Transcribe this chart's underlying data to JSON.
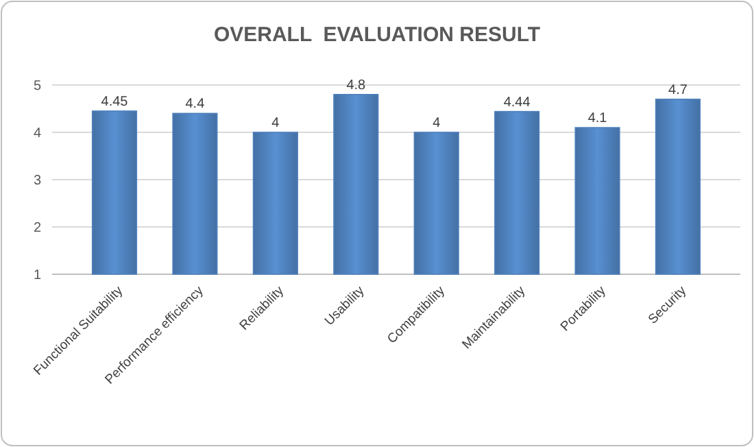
{
  "chart_data": {
    "type": "bar",
    "title": "OVERALL  EVALUATION RESULT",
    "categories": [
      "Functional Suitability",
      "Performance efficiency",
      "Reliability",
      "Usability",
      "Compatibility",
      "Maintainability",
      "Portability",
      "Security"
    ],
    "values": [
      4.45,
      4.4,
      4,
      4.8,
      4,
      4.44,
      4.1,
      4.7
    ],
    "color": "#4f81bd",
    "ylim": [
      1,
      5
    ],
    "yticks": [
      1,
      2,
      3,
      4,
      5
    ],
    "grid": "y",
    "data_labels": true
  }
}
